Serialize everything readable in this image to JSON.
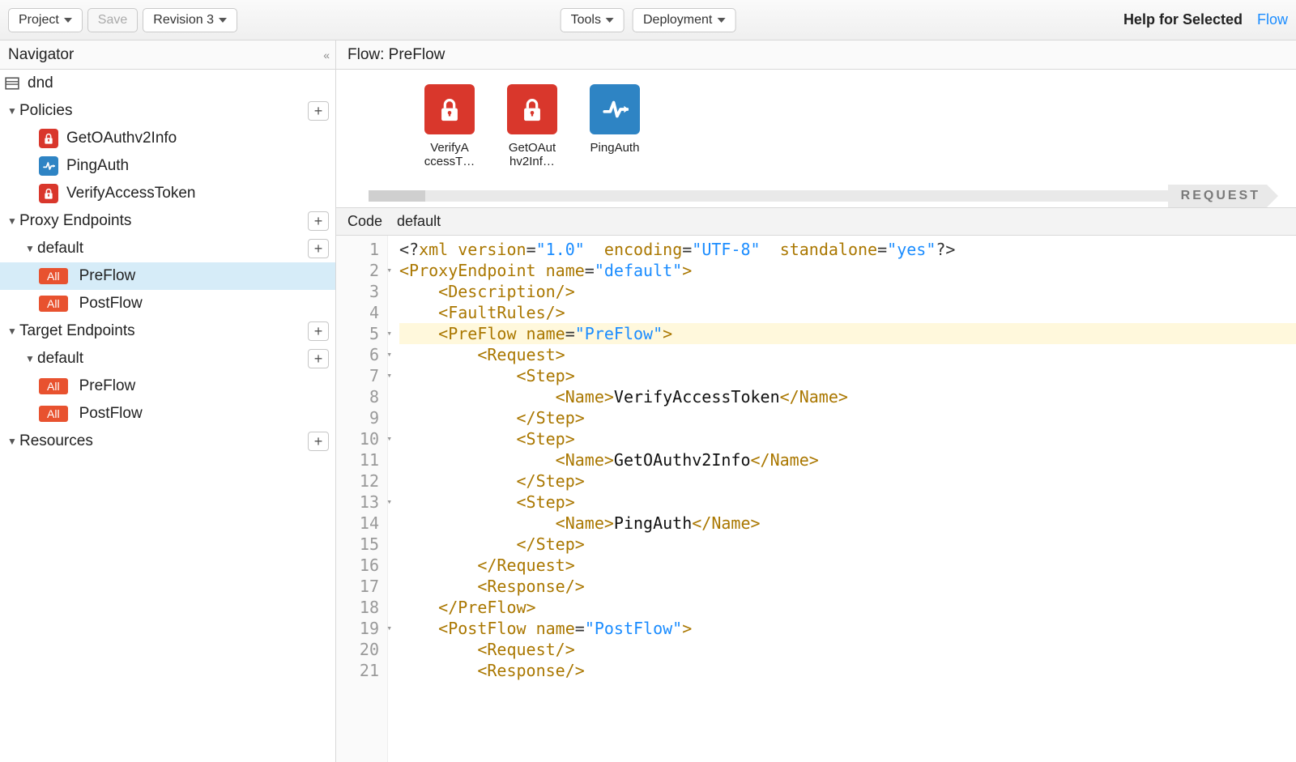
{
  "toolbar": {
    "project": "Project",
    "save": "Save",
    "revision": "Revision 3",
    "tools": "Tools",
    "deployment": "Deployment",
    "help": "Help for Selected",
    "flow_link": "Flow"
  },
  "nav": {
    "title": "Navigator",
    "project_name": "dnd",
    "sections": {
      "policies": "Policies",
      "proxy_endpoints": "Proxy Endpoints",
      "target_endpoints": "Target Endpoints",
      "resources": "Resources"
    },
    "policies_items": [
      {
        "name": "GetOAuthv2Info",
        "icon": "lock",
        "color": "red"
      },
      {
        "name": "PingAuth",
        "icon": "pulse",
        "color": "blue"
      },
      {
        "name": "VerifyAccessToken",
        "icon": "lock",
        "color": "red"
      }
    ],
    "proxy_default": "default",
    "proxy_flows": [
      {
        "badge": "All",
        "name": "PreFlow",
        "selected": true
      },
      {
        "badge": "All",
        "name": "PostFlow",
        "selected": false
      }
    ],
    "target_default": "default",
    "target_flows": [
      {
        "badge": "All",
        "name": "PreFlow"
      },
      {
        "badge": "All",
        "name": "PostFlow"
      }
    ]
  },
  "flow": {
    "header": "Flow: PreFlow",
    "request_label": "REQUEST",
    "steps": [
      {
        "label": "VerifyAccessT…",
        "icon": "lock",
        "color": "red"
      },
      {
        "label": "GetOAuthv2Inf…",
        "icon": "lock",
        "color": "red"
      },
      {
        "label": "PingAuth",
        "icon": "pulse",
        "color": "blue"
      }
    ]
  },
  "code": {
    "header_left": "Code",
    "header_right": "default",
    "fold_lines": [
      2,
      5,
      6,
      7,
      10,
      13,
      19
    ],
    "highlight_line": 5,
    "lines": [
      [
        {
          "c": "t-pi",
          "t": "<?"
        },
        {
          "c": "t-tag",
          "t": "xml"
        },
        {
          "c": "",
          "t": " "
        },
        {
          "c": "t-tag",
          "t": "version"
        },
        {
          "c": "t-pi",
          "t": "="
        },
        {
          "c": "t-attr",
          "t": "\"1.0\""
        },
        {
          "c": "",
          "t": "  "
        },
        {
          "c": "t-tag",
          "t": "encoding"
        },
        {
          "c": "t-pi",
          "t": "="
        },
        {
          "c": "t-attr",
          "t": "\"UTF-8\""
        },
        {
          "c": "",
          "t": "  "
        },
        {
          "c": "t-tag",
          "t": "standalone"
        },
        {
          "c": "t-pi",
          "t": "="
        },
        {
          "c": "t-attr",
          "t": "\"yes\""
        },
        {
          "c": "t-pi",
          "t": "?>"
        }
      ],
      [
        {
          "c": "t-tag",
          "t": "<ProxyEndpoint"
        },
        {
          "c": "",
          "t": " "
        },
        {
          "c": "t-tag",
          "t": "name"
        },
        {
          "c": "t-pi",
          "t": "="
        },
        {
          "c": "t-attr",
          "t": "\"default\""
        },
        {
          "c": "t-tag",
          "t": ">"
        }
      ],
      [
        {
          "c": "",
          "t": "    "
        },
        {
          "c": "t-tag",
          "t": "<Description/>"
        }
      ],
      [
        {
          "c": "",
          "t": "    "
        },
        {
          "c": "t-tag",
          "t": "<FaultRules/>"
        }
      ],
      [
        {
          "c": "",
          "t": "    "
        },
        {
          "c": "t-tag",
          "t": "<PreFlow"
        },
        {
          "c": "",
          "t": " "
        },
        {
          "c": "t-tag",
          "t": "name"
        },
        {
          "c": "t-pi",
          "t": "="
        },
        {
          "c": "t-attr",
          "t": "\"PreFlow\""
        },
        {
          "c": "t-tag",
          "t": ">"
        }
      ],
      [
        {
          "c": "",
          "t": "        "
        },
        {
          "c": "t-tag",
          "t": "<Request>"
        }
      ],
      [
        {
          "c": "",
          "t": "            "
        },
        {
          "c": "t-tag",
          "t": "<Step>"
        }
      ],
      [
        {
          "c": "",
          "t": "                "
        },
        {
          "c": "t-tag",
          "t": "<Name>"
        },
        {
          "c": "t-txt",
          "t": "VerifyAccessToken"
        },
        {
          "c": "t-tag",
          "t": "</Name>"
        }
      ],
      [
        {
          "c": "",
          "t": "            "
        },
        {
          "c": "t-tag",
          "t": "</Step>"
        }
      ],
      [
        {
          "c": "",
          "t": "            "
        },
        {
          "c": "t-tag",
          "t": "<Step>"
        }
      ],
      [
        {
          "c": "",
          "t": "                "
        },
        {
          "c": "t-tag",
          "t": "<Name>"
        },
        {
          "c": "t-txt",
          "t": "GetOAuthv2Info"
        },
        {
          "c": "t-tag",
          "t": "</Name>"
        }
      ],
      [
        {
          "c": "",
          "t": "            "
        },
        {
          "c": "t-tag",
          "t": "</Step>"
        }
      ],
      [
        {
          "c": "",
          "t": "            "
        },
        {
          "c": "t-tag",
          "t": "<Step>"
        }
      ],
      [
        {
          "c": "",
          "t": "                "
        },
        {
          "c": "t-tag",
          "t": "<Name>"
        },
        {
          "c": "t-txt",
          "t": "PingAuth"
        },
        {
          "c": "t-tag",
          "t": "</Name>"
        }
      ],
      [
        {
          "c": "",
          "t": "            "
        },
        {
          "c": "t-tag",
          "t": "</Step>"
        }
      ],
      [
        {
          "c": "",
          "t": "        "
        },
        {
          "c": "t-tag",
          "t": "</Request>"
        }
      ],
      [
        {
          "c": "",
          "t": "        "
        },
        {
          "c": "t-tag",
          "t": "<Response/>"
        }
      ],
      [
        {
          "c": "",
          "t": "    "
        },
        {
          "c": "t-tag",
          "t": "</PreFlow>"
        }
      ],
      [
        {
          "c": "",
          "t": "    "
        },
        {
          "c": "t-tag",
          "t": "<PostFlow"
        },
        {
          "c": "",
          "t": " "
        },
        {
          "c": "t-tag",
          "t": "name"
        },
        {
          "c": "t-pi",
          "t": "="
        },
        {
          "c": "t-attr",
          "t": "\"PostFlow\""
        },
        {
          "c": "t-tag",
          "t": ">"
        }
      ],
      [
        {
          "c": "",
          "t": "        "
        },
        {
          "c": "t-tag",
          "t": "<Request/>"
        }
      ],
      [
        {
          "c": "",
          "t": "        "
        },
        {
          "c": "t-tag",
          "t": "<Response/>"
        }
      ]
    ]
  }
}
